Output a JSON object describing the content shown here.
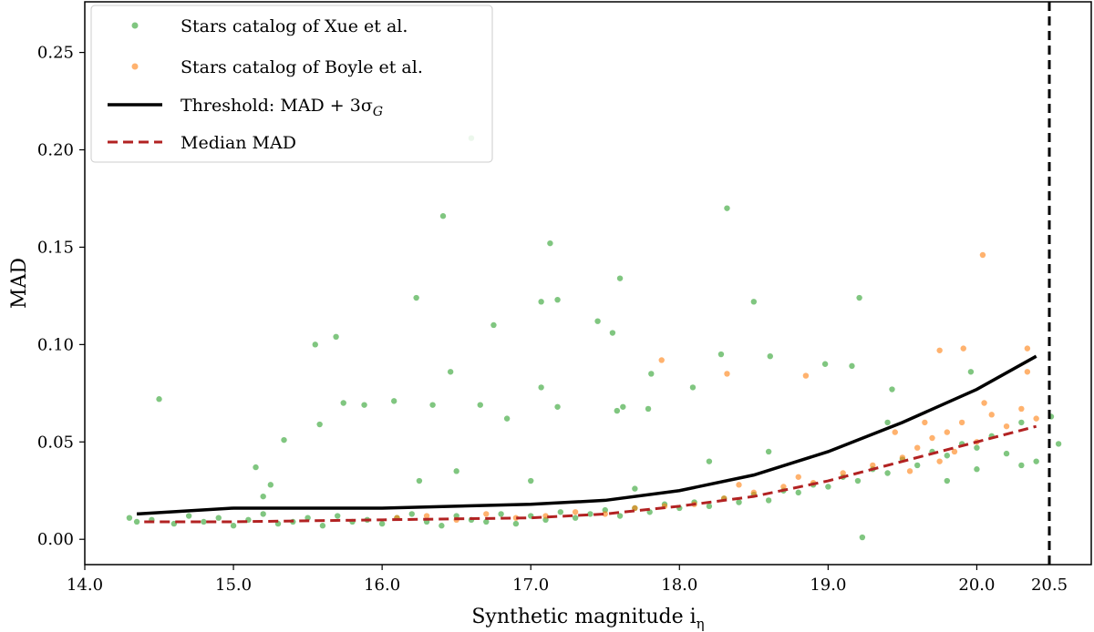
{
  "chart_data": {
    "type": "scatter",
    "title": "",
    "xlabel": {
      "main": "Synthetic magnitude i",
      "sub": "η"
    },
    "ylabel": "MAD",
    "xlim": [
      14.0,
      20.77
    ],
    "ylim": [
      -0.013,
      0.276
    ],
    "xticks": [
      14.0,
      15.0,
      16.0,
      17.0,
      18.0,
      19.0,
      20.0
    ],
    "xtick_labels": [
      "14.0",
      "15.0",
      "16.0",
      "17.0",
      "18.0",
      "19.0",
      "20.0"
    ],
    "yticks": [
      0.0,
      0.05,
      0.1,
      0.15,
      0.2,
      0.25
    ],
    "ytick_labels": [
      "0.00",
      "0.05",
      "0.10",
      "0.15",
      "0.20",
      "0.25"
    ],
    "grid": false,
    "legend_position": "top-left",
    "vertical_line": {
      "label": "20.5",
      "color": "#000000",
      "style": "dashed"
    },
    "series": [
      {
        "name": "Stars catalog of Xue et al.",
        "kind": "scatter",
        "color": "#2ca02c",
        "points": [
          [
            14.5,
            0.072
          ],
          [
            16.6,
            0.206
          ],
          [
            16.41,
            0.166
          ],
          [
            18.32,
            0.17
          ],
          [
            17.13,
            0.152
          ],
          [
            16.23,
            0.124
          ],
          [
            17.07,
            0.122
          ],
          [
            16.75,
            0.11
          ],
          [
            17.45,
            0.112
          ],
          [
            17.55,
            0.106
          ],
          [
            17.18,
            0.123
          ],
          [
            17.6,
            0.134
          ],
          [
            15.55,
            0.1
          ],
          [
            15.69,
            0.104
          ],
          [
            15.74,
            0.07
          ],
          [
            15.15,
            0.037
          ],
          [
            15.34,
            0.051
          ],
          [
            15.58,
            0.059
          ],
          [
            15.88,
            0.069
          ],
          [
            16.08,
            0.071
          ],
          [
            16.46,
            0.086
          ],
          [
            16.34,
            0.069
          ],
          [
            16.66,
            0.069
          ],
          [
            16.84,
            0.062
          ],
          [
            17.07,
            0.078
          ],
          [
            17.18,
            0.068
          ],
          [
            17.58,
            0.066
          ],
          [
            17.62,
            0.068
          ],
          [
            17.79,
            0.067
          ],
          [
            17.81,
            0.085
          ],
          [
            18.09,
            0.078
          ],
          [
            18.28,
            0.095
          ],
          [
            18.5,
            0.122
          ],
          [
            18.61,
            0.094
          ],
          [
            18.98,
            0.09
          ],
          [
            19.21,
            0.124
          ],
          [
            19.16,
            0.089
          ],
          [
            19.43,
            0.077
          ],
          [
            19.23,
            0.001
          ],
          [
            19.96,
            0.086
          ],
          [
            14.3,
            0.011
          ],
          [
            14.35,
            0.009
          ],
          [
            14.45,
            0.01
          ],
          [
            14.6,
            0.008
          ],
          [
            14.7,
            0.012
          ],
          [
            14.8,
            0.009
          ],
          [
            14.9,
            0.011
          ],
          [
            15.0,
            0.007
          ],
          [
            15.1,
            0.01
          ],
          [
            15.2,
            0.013
          ],
          [
            15.3,
            0.008
          ],
          [
            15.4,
            0.009
          ],
          [
            15.5,
            0.011
          ],
          [
            15.6,
            0.007
          ],
          [
            15.7,
            0.012
          ],
          [
            15.8,
            0.009
          ],
          [
            15.9,
            0.01
          ],
          [
            16.0,
            0.008
          ],
          [
            16.1,
            0.011
          ],
          [
            16.2,
            0.013
          ],
          [
            16.3,
            0.009
          ],
          [
            16.4,
            0.007
          ],
          [
            16.5,
            0.012
          ],
          [
            16.6,
            0.01
          ],
          [
            16.7,
            0.009
          ],
          [
            16.8,
            0.013
          ],
          [
            16.9,
            0.008
          ],
          [
            17.0,
            0.012
          ],
          [
            17.1,
            0.01
          ],
          [
            17.2,
            0.014
          ],
          [
            17.3,
            0.011
          ],
          [
            17.4,
            0.013
          ],
          [
            17.5,
            0.015
          ],
          [
            17.6,
            0.012
          ],
          [
            17.7,
            0.016
          ],
          [
            17.8,
            0.014
          ],
          [
            17.9,
            0.018
          ],
          [
            18.0,
            0.016
          ],
          [
            18.1,
            0.019
          ],
          [
            18.2,
            0.017
          ],
          [
            18.3,
            0.021
          ],
          [
            18.4,
            0.019
          ],
          [
            18.5,
            0.023
          ],
          [
            18.6,
            0.02
          ],
          [
            18.7,
            0.025
          ],
          [
            18.8,
            0.024
          ],
          [
            18.9,
            0.028
          ],
          [
            19.0,
            0.027
          ],
          [
            19.1,
            0.032
          ],
          [
            19.2,
            0.03
          ],
          [
            19.3,
            0.036
          ],
          [
            19.4,
            0.034
          ],
          [
            19.5,
            0.041
          ],
          [
            19.6,
            0.038
          ],
          [
            19.7,
            0.045
          ],
          [
            19.8,
            0.043
          ],
          [
            19.9,
            0.049
          ],
          [
            20.0,
            0.047
          ],
          [
            20.1,
            0.053
          ],
          [
            20.2,
            0.044
          ],
          [
            20.3,
            0.06
          ],
          [
            20.4,
            0.04
          ],
          [
            20.5,
            0.063
          ],
          [
            20.55,
            0.049
          ],
          [
            15.2,
            0.022
          ],
          [
            15.25,
            0.028
          ],
          [
            16.25,
            0.03
          ],
          [
            16.5,
            0.035
          ],
          [
            17.0,
            0.03
          ],
          [
            17.7,
            0.026
          ],
          [
            18.2,
            0.04
          ],
          [
            18.6,
            0.045
          ],
          [
            19.4,
            0.06
          ],
          [
            20.3,
            0.038
          ],
          [
            19.8,
            0.03
          ],
          [
            20.0,
            0.036
          ]
        ]
      },
      {
        "name": "Stars catalog of Boyle et al.",
        "kind": "scatter",
        "color": "#ff7f0e",
        "points": [
          [
            20.04,
            0.146
          ],
          [
            18.85,
            0.084
          ],
          [
            19.75,
            0.097
          ],
          [
            19.91,
            0.098
          ],
          [
            20.34,
            0.098
          ],
          [
            17.88,
            0.092
          ],
          [
            18.32,
            0.085
          ],
          [
            20.34,
            0.086
          ],
          [
            16.1,
            0.011
          ],
          [
            16.3,
            0.012
          ],
          [
            16.5,
            0.01
          ],
          [
            16.7,
            0.013
          ],
          [
            16.9,
            0.011
          ],
          [
            17.1,
            0.012
          ],
          [
            17.3,
            0.014
          ],
          [
            17.5,
            0.013
          ],
          [
            17.7,
            0.016
          ],
          [
            17.9,
            0.017
          ],
          [
            18.1,
            0.018
          ],
          [
            18.3,
            0.021
          ],
          [
            18.5,
            0.024
          ],
          [
            18.7,
            0.027
          ],
          [
            18.9,
            0.029
          ],
          [
            19.1,
            0.034
          ],
          [
            19.3,
            0.038
          ],
          [
            19.5,
            0.042
          ],
          [
            19.6,
            0.047
          ],
          [
            19.7,
            0.052
          ],
          [
            19.8,
            0.055
          ],
          [
            19.9,
            0.06
          ],
          [
            20.0,
            0.05
          ],
          [
            20.1,
            0.064
          ],
          [
            20.2,
            0.058
          ],
          [
            20.3,
            0.067
          ],
          [
            20.4,
            0.062
          ],
          [
            19.75,
            0.04
          ],
          [
            19.65,
            0.06
          ],
          [
            19.85,
            0.045
          ],
          [
            19.55,
            0.035
          ],
          [
            20.05,
            0.07
          ],
          [
            19.45,
            0.055
          ],
          [
            18.8,
            0.032
          ],
          [
            18.4,
            0.028
          ]
        ]
      },
      {
        "name": {
          "main": "Threshold: MAD + 3σ",
          "sub": "G"
        },
        "kind": "line",
        "color": "#000000",
        "x": [
          14.35,
          15.0,
          16.0,
          17.0,
          17.5,
          18.0,
          18.5,
          19.0,
          19.5,
          20.0,
          20.4
        ],
        "y": [
          0.013,
          0.016,
          0.016,
          0.018,
          0.02,
          0.025,
          0.033,
          0.045,
          0.06,
          0.077,
          0.094
        ]
      },
      {
        "name": "Median MAD",
        "kind": "line",
        "style": "dashed",
        "color": "#b22222",
        "x": [
          14.4,
          15.0,
          16.0,
          17.0,
          17.5,
          18.0,
          18.5,
          19.0,
          19.5,
          20.0,
          20.4
        ],
        "y": [
          0.009,
          0.009,
          0.01,
          0.011,
          0.013,
          0.017,
          0.022,
          0.03,
          0.04,
          0.05,
          0.058
        ]
      }
    ]
  }
}
